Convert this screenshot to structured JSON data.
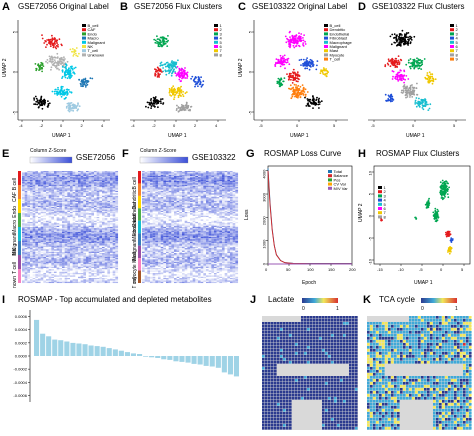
{
  "panels": {
    "A": {
      "letter": "A",
      "title": "GSE72056 Original Label",
      "xlabel": "UMAP 1",
      "ylabel": "UMAP 2",
      "xticks": [
        "-4",
        "-2",
        "0",
        "2",
        "4"
      ],
      "yticks": [
        "-5",
        "0",
        "5"
      ],
      "legend": [
        "B_cell",
        "CAF",
        "Endo",
        "Macro",
        "Malignant",
        "NK",
        "T_cell",
        "Unknown"
      ]
    },
    "B": {
      "letter": "B",
      "title": "GSE72056 Flux Clusters",
      "xlabel": "UMAP 1",
      "xticks": [
        "-4",
        "-2",
        "0",
        "2",
        "4"
      ],
      "legend": [
        "1",
        "2",
        "3",
        "4",
        "5",
        "6",
        "7",
        "8"
      ]
    },
    "C": {
      "letter": "C",
      "title": "GSE103322 Original Label",
      "xlabel": "UMAP 1",
      "ylabel": "UMAP 2",
      "xticks": [
        "-5",
        "0",
        "5"
      ],
      "yticks": [
        "-5",
        "0",
        "5"
      ],
      "legend": [
        "B_cell",
        "Dendritic",
        "Endothelial",
        "Fibroblast",
        "Macrophage",
        "Malignant",
        "Mast",
        "Myocyte",
        "T_cell"
      ]
    },
    "D": {
      "letter": "D",
      "title": "GSE103322 Flux Clusters",
      "xlabel": "UMAP 1",
      "xticks": [
        "-5",
        "0",
        "5"
      ],
      "legend": [
        "1",
        "2",
        "3",
        "4",
        "5",
        "6",
        "7",
        "8",
        "9"
      ]
    },
    "E": {
      "letter": "E",
      "title": "GSE72056",
      "key_title": "Column Z-Score",
      "row_labels": [
        "B cell",
        "CAF",
        "Endo",
        "Macro",
        "Malignant",
        "NK",
        "T cell",
        "unknown"
      ]
    },
    "F": {
      "letter": "F",
      "title": "GSE103322",
      "key_title": "Column Z-Score",
      "row_labels": [
        "B cell",
        "Dendritic",
        "Endothelial",
        "Fibroblast",
        "Macro",
        "Malignant",
        "Mast",
        "myocyte",
        "T cell"
      ]
    },
    "G": {
      "letter": "G",
      "title": "ROSMAP Loss Curve",
      "xlabel": "Epoch",
      "ylabel": "Loss",
      "xticks": [
        "0",
        "50",
        "100",
        "150",
        "200"
      ],
      "yticks": [
        "0",
        "1000",
        "2000",
        "3000",
        "4000"
      ],
      "legend": [
        "Total",
        "Balance",
        "Pos",
        "CV Var",
        "M/V Var"
      ]
    },
    "H": {
      "letter": "H",
      "title": "ROSMAP Flux Clusters",
      "xlabel": "UMAP 1",
      "ylabel": "UMAP 2",
      "xticks": [
        "-15",
        "-10",
        "-5",
        "0",
        "5"
      ],
      "yticks": [
        "-10",
        "-5",
        "0",
        "5",
        "10"
      ],
      "legend": [
        "1",
        "2",
        "3",
        "4",
        "5",
        "6",
        "7",
        "8"
      ]
    },
    "I": {
      "letter": "I",
      "title": "ROSMAP - Top accumulated and depleted metabolites",
      "yticks": [
        "0.0006",
        "0.0004",
        "0.0002",
        "0.0000",
        "-0.0002",
        "-0.0004",
        "-0.0006"
      ]
    },
    "J": {
      "letter": "J",
      "title": "Lactate",
      "scale_min": "0",
      "scale_max": "1"
    },
    "K": {
      "letter": "K",
      "title": "TCA cycle",
      "scale_min": "0",
      "scale_max": "1"
    }
  },
  "colors": {
    "A": [
      "#000000",
      "#e41a1c",
      "#2ca02c",
      "#1f77b4",
      "#00c8e6",
      "#f0e442",
      "#9ecae1",
      "#b0b0b0"
    ],
    "B": [
      "#000000",
      "#e41a1c",
      "#00a651",
      "#1f4fd8",
      "#17becf",
      "#ff00ff",
      "#f0c800",
      "#a0a0a0"
    ],
    "C": [
      "#000000",
      "#e41a1c",
      "#00a651",
      "#1f4fd8",
      "#17becf",
      "#ff00ff",
      "#f0c800",
      "#a0a0a0",
      "#ff7f0e"
    ],
    "D": [
      "#000000",
      "#e41a1c",
      "#00a651",
      "#1f4fd8",
      "#17becf",
      "#ff00ff",
      "#f0c800",
      "#a0a0a0",
      "#ff7f0e"
    ],
    "G": [
      "#1f77b4",
      "#d62728",
      "#2ca02c",
      "#ffa500",
      "#9b59b6"
    ],
    "H": [
      "#000000",
      "#e41a1c",
      "#00a651",
      "#1f4fd8",
      "#17becf",
      "#ff00ff",
      "#f0c800",
      "#a0a0a0"
    ],
    "heat_low": "#ffffff",
    "heat_high": "#3b4fd8",
    "bar": "#9fd3e6",
    "spatial_low": "#2b3a8f",
    "spatial_high": "#d7302f"
  },
  "chart_data": [
    {
      "type": "line",
      "title": "ROSMAP Loss Curve",
      "xlabel": "Epoch",
      "ylabel": "Loss",
      "xlim": [
        0,
        200
      ],
      "ylim": [
        0,
        4200
      ],
      "series": [
        {
          "name": "Total",
          "x": [
            0,
            5,
            10,
            15,
            20,
            30,
            40,
            60,
            100,
            200
          ],
          "values": [
            4100,
            2600,
            1500,
            800,
            400,
            150,
            60,
            30,
            20,
            20
          ]
        },
        {
          "name": "Balance",
          "x": [
            0,
            5,
            10,
            15,
            20,
            30,
            40,
            60,
            100,
            200
          ],
          "values": [
            4000,
            2500,
            1450,
            780,
            390,
            140,
            55,
            25,
            15,
            15
          ]
        },
        {
          "name": "Pos",
          "x": [
            0,
            200
          ],
          "values": [
            0,
            0
          ]
        },
        {
          "name": "CV Var",
          "x": [
            0,
            200
          ],
          "values": [
            0,
            0
          ]
        },
        {
          "name": "M/V Var",
          "x": [
            0,
            200
          ],
          "values": [
            0,
            0
          ]
        }
      ]
    },
    {
      "type": "bar",
      "title": "ROSMAP - Top accumulated and depleted metabolites",
      "ylim": [
        -0.0007,
        0.0007
      ],
      "values": [
        0.00055,
        0.00034,
        0.0003,
        0.00025,
        0.00024,
        0.00022,
        0.0002,
        0.00019,
        0.00018,
        0.00016,
        0.00015,
        0.00014,
        0.00012,
        0.0001,
        8e-05,
        6e-05,
        4e-05,
        3e-05,
        -1e-05,
        -2e-05,
        -3e-05,
        -5e-05,
        -6e-05,
        -8e-05,
        -9e-05,
        -0.0001,
        -0.00012,
        -0.00013,
        -0.00015,
        -0.00016,
        -0.00018,
        -0.00025,
        -0.00028,
        -0.00031
      ]
    }
  ]
}
